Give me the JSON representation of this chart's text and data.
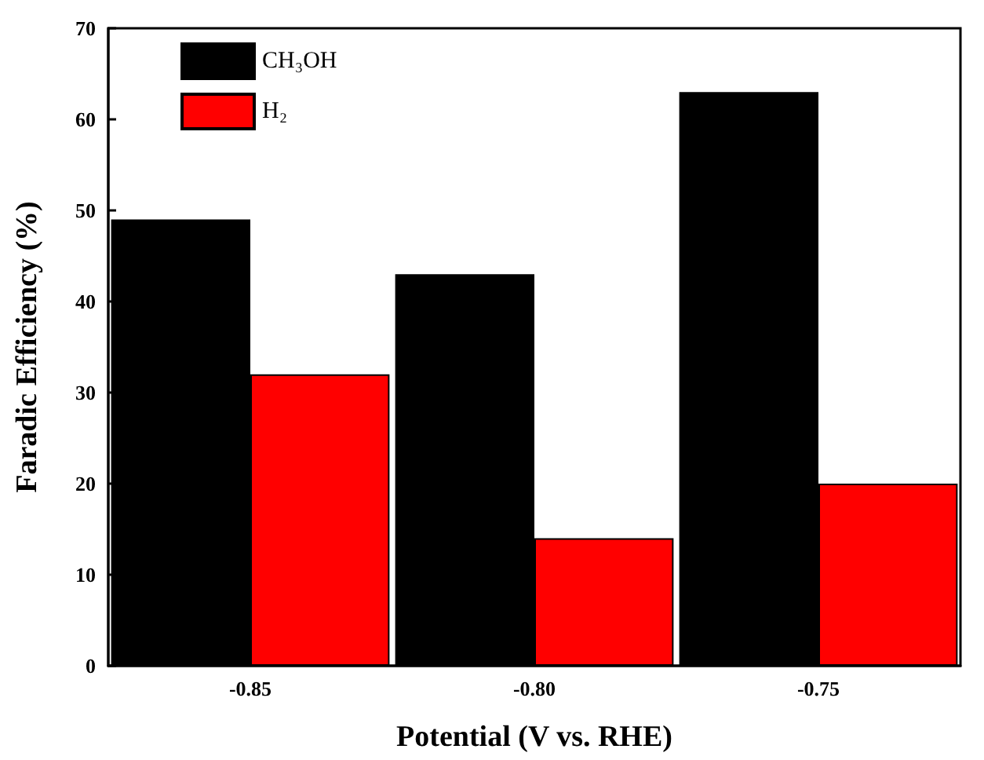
{
  "chart_data": {
    "type": "bar",
    "xlabel": "Potential (V vs. RHE)",
    "ylabel": "Faradic Efficiency (%)",
    "categories": [
      "-0.85",
      "-0.80",
      "-0.75"
    ],
    "series": [
      {
        "name": "CH₃OH",
        "color": "#000000",
        "values": [
          49,
          43,
          63
        ]
      },
      {
        "name": "H₂",
        "color": "#ff0000",
        "values": [
          32,
          14,
          20
        ]
      }
    ],
    "ylim": [
      0,
      70
    ],
    "yticks": [
      0,
      10,
      20,
      30,
      40,
      50,
      60,
      70
    ],
    "legend": "top left",
    "grid": false
  }
}
